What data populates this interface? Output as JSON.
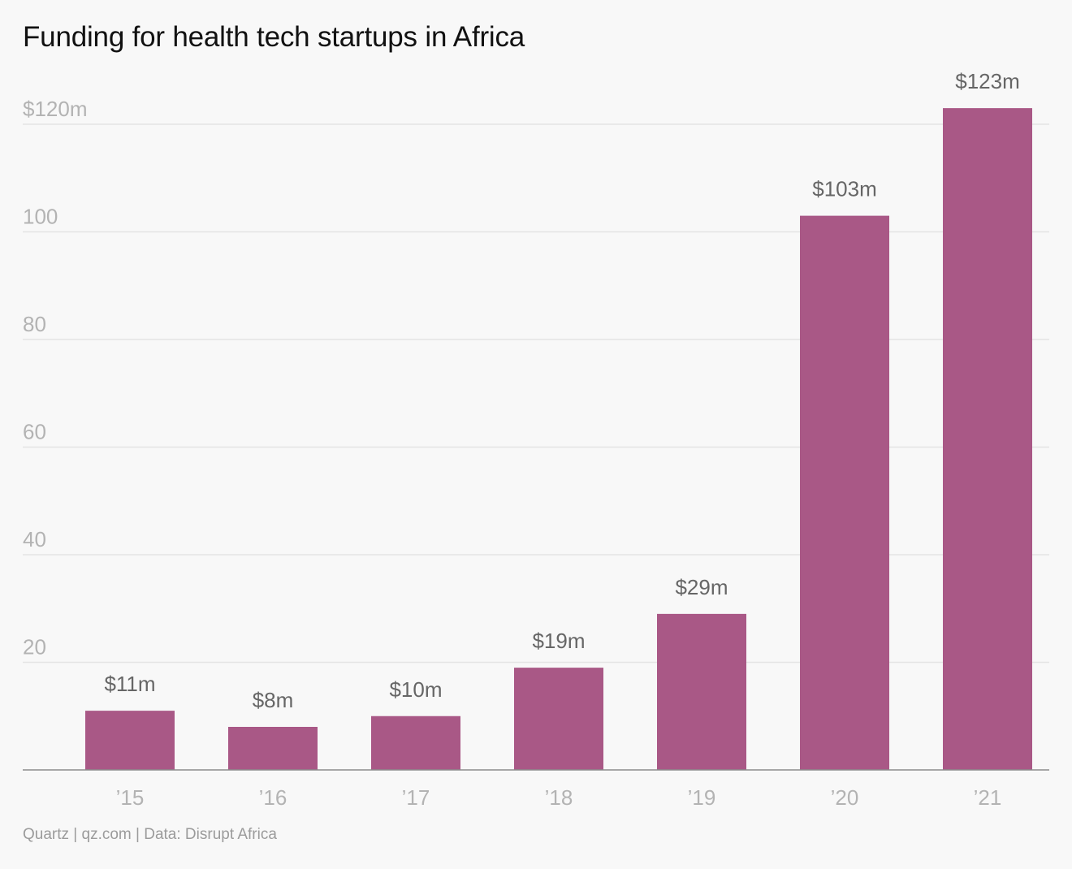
{
  "chart_data": {
    "type": "bar",
    "title": "Funding for health tech startups in Africa",
    "categories": [
      "’15",
      "’16",
      "’17",
      "’18",
      "’19",
      "’20",
      "’21"
    ],
    "values": [
      11,
      8,
      10,
      19,
      29,
      103,
      123
    ],
    "data_labels": [
      "$11m",
      "$8m",
      "$10m",
      "$19m",
      "$29m",
      "$103m",
      "$123m"
    ],
    "ylim": [
      0,
      120
    ],
    "yticks": [
      20,
      40,
      60,
      80,
      100,
      120
    ],
    "ytick_labels": [
      "20",
      "40",
      "60",
      "80",
      "100",
      "$120m"
    ],
    "xlabel": "",
    "ylabel": "",
    "grid": true,
    "colors": {
      "bar": "#a95886",
      "grid": "#e4e4e4",
      "baseline": "#8c8c8c",
      "background": "#f8f8f8"
    }
  },
  "footer": {
    "source": "Quartz | qz.com | Data: Disrupt Africa"
  }
}
